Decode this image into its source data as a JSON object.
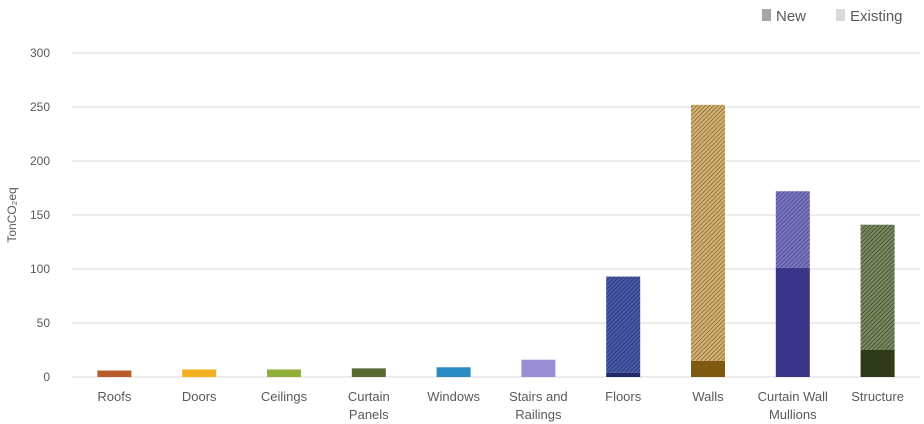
{
  "chart_data": {
    "type": "bar",
    "stacked": true,
    "ylabel": "TonCO₂eq",
    "ylim": [
      0,
      300
    ],
    "yticks": [
      0,
      50,
      100,
      150,
      200,
      250,
      300
    ],
    "grid": true,
    "legend_position": "top-right",
    "categories": [
      "Roofs",
      "Doors",
      "Ceilings",
      "Curtain Panels",
      "Windows",
      "Stairs and Railings",
      "Floors",
      "Walls",
      "Curtain Wall Mullions",
      "Structure"
    ],
    "category_lines": [
      [
        "Roofs"
      ],
      [
        "Doors"
      ],
      [
        "Ceilings"
      ],
      [
        "Curtain",
        "Panels"
      ],
      [
        "Windows"
      ],
      [
        "Stairs and",
        "Railings"
      ],
      [
        "Floors"
      ],
      [
        "Walls"
      ],
      [
        "Curtain Wall",
        "Mullions"
      ],
      [
        "Structure"
      ]
    ],
    "colors": [
      "#b85c2a",
      "#f2b120",
      "#8fae3a",
      "#5a6a32",
      "#2a8ac4",
      "#9a8fd6",
      "#1f2a6b",
      "#7d5a10",
      "#3a3588",
      "#2f3a1a"
    ],
    "hatch_colors": [
      "#e2a480",
      "#f7d47e",
      "#c6d79a",
      "#a9b38a",
      "#7fbbe0",
      "#c9c2ec",
      "#4a5aa6",
      "#d0b27a",
      "#7b77bd",
      "#7c8a62"
    ],
    "series": [
      {
        "name": "New",
        "values": [
          6,
          7,
          7,
          8,
          9,
          16,
          4,
          15,
          101,
          25
        ]
      },
      {
        "name": "Existing",
        "values": [
          0,
          0,
          0,
          0,
          0,
          0,
          89,
          237,
          71,
          116
        ]
      }
    ],
    "legend": {
      "new_label": "New",
      "existing_label": "Existing",
      "new_color": "#a6a6a6",
      "existing_color": "#d9d9d9"
    }
  }
}
